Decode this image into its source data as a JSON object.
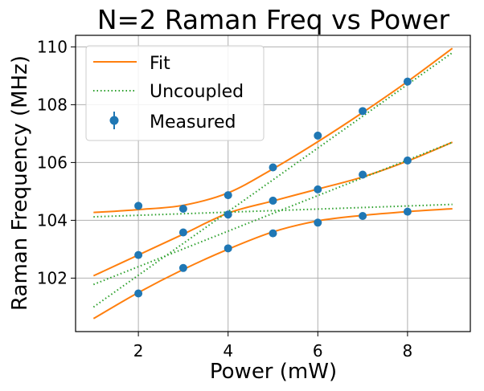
{
  "chart_data": {
    "type": "line",
    "title": "N=2 Raman Freq vs Power",
    "xlabel": "Power (mW)",
    "ylabel": "Raman Frequency (MHz)",
    "xlim": [
      0.6,
      9.4
    ],
    "ylim": [
      100.15,
      110.4
    ],
    "xticks": [
      2,
      4,
      6,
      8
    ],
    "yticks": [
      102,
      104,
      106,
      108,
      110
    ],
    "grid": true,
    "legend": {
      "placement": "upper-left",
      "entries": [
        "Fit",
        "Uncoupled",
        "Measured"
      ]
    },
    "colors": {
      "fit": "#ff7f0e",
      "uncoupled": "#2ca02c",
      "measured": "#1f77b4",
      "grid": "#b0b0b0"
    },
    "series": [
      {
        "name": "Fit",
        "style": "solid",
        "x": [
          1,
          2,
          3,
          4,
          5,
          6,
          7,
          8,
          9
        ],
        "y": [
          104.27,
          104.37,
          104.52,
          104.95,
          105.78,
          106.72,
          107.73,
          108.8,
          109.95
        ]
      },
      {
        "name": "Fit",
        "style": "solid",
        "x": [
          1,
          2,
          3,
          4,
          5,
          6,
          7,
          8,
          9
        ],
        "y": [
          102.08,
          102.8,
          103.52,
          104.25,
          104.67,
          105.08,
          105.5,
          106.05,
          106.7
        ]
      },
      {
        "name": "Fit",
        "style": "solid",
        "x": [
          1,
          2,
          3,
          4,
          5,
          6,
          7,
          8,
          9
        ],
        "y": [
          100.6,
          101.5,
          102.3,
          103.0,
          103.6,
          103.98,
          104.17,
          104.3,
          104.4
        ]
      },
      {
        "name": "Uncoupled",
        "style": "dotted",
        "x": [
          1,
          9
        ],
        "y": [
          101.0,
          109.8
        ]
      },
      {
        "name": "Uncoupled",
        "style": "dotted",
        "x": [
          1,
          9
        ],
        "y": [
          101.78,
          106.7
        ]
      },
      {
        "name": "Uncoupled",
        "style": "dotted",
        "x": [
          1,
          9
        ],
        "y": [
          104.12,
          104.55
        ]
      },
      {
        "name": "Measured",
        "style": "points",
        "x": [
          2,
          3,
          4,
          5,
          6,
          7,
          8
        ],
        "y": [
          104.5,
          104.4,
          104.87,
          105.83,
          106.93,
          107.78,
          108.8
        ]
      },
      {
        "name": "Measured",
        "style": "points",
        "x": [
          2,
          3,
          4,
          5,
          6,
          7,
          8
        ],
        "y": [
          102.8,
          103.58,
          104.2,
          104.68,
          105.07,
          105.58,
          106.07
        ]
      },
      {
        "name": "Measured",
        "style": "points",
        "x": [
          2,
          3,
          4,
          5,
          6,
          7,
          8
        ],
        "y": [
          101.47,
          102.35,
          103.03,
          103.55,
          103.92,
          104.15,
          104.3
        ]
      }
    ]
  }
}
